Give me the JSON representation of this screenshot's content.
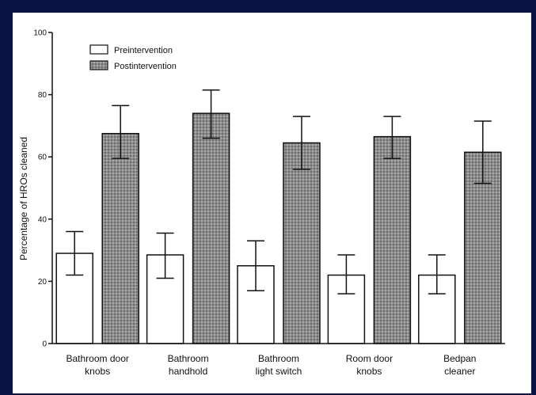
{
  "chart_data": {
    "type": "bar",
    "title": "",
    "xlabel": "",
    "ylabel": "Percentage of HROs cleaned",
    "ylim": [
      0,
      100
    ],
    "yticks": [
      "0",
      "20",
      "40",
      "60",
      "80",
      "100"
    ],
    "categories": [
      [
        "Bathroom door",
        "knobs"
      ],
      [
        "Bathroom",
        "handhold"
      ],
      [
        "Bathroom",
        "light switch"
      ],
      [
        "Room door",
        "knobs"
      ],
      [
        "Bedpan",
        "cleaner"
      ]
    ],
    "series": [
      {
        "name": "Preintervention",
        "values": [
          29,
          28.5,
          25,
          22,
          22
        ],
        "error_low": [
          22,
          21,
          17,
          16,
          16
        ],
        "error_high": [
          36,
          35.5,
          33,
          28.5,
          28.5
        ],
        "fill": "#ffffff"
      },
      {
        "name": "Postintervention",
        "values": [
          67.5,
          74,
          64.5,
          66.5,
          61.5
        ],
        "error_low": [
          59.5,
          66,
          56,
          59.5,
          51.5
        ],
        "error_high": [
          76.5,
          81.5,
          73,
          73,
          71.5
        ],
        "fill": "#8c8c8c"
      }
    ],
    "legend_position": "top-left",
    "grid": false
  }
}
